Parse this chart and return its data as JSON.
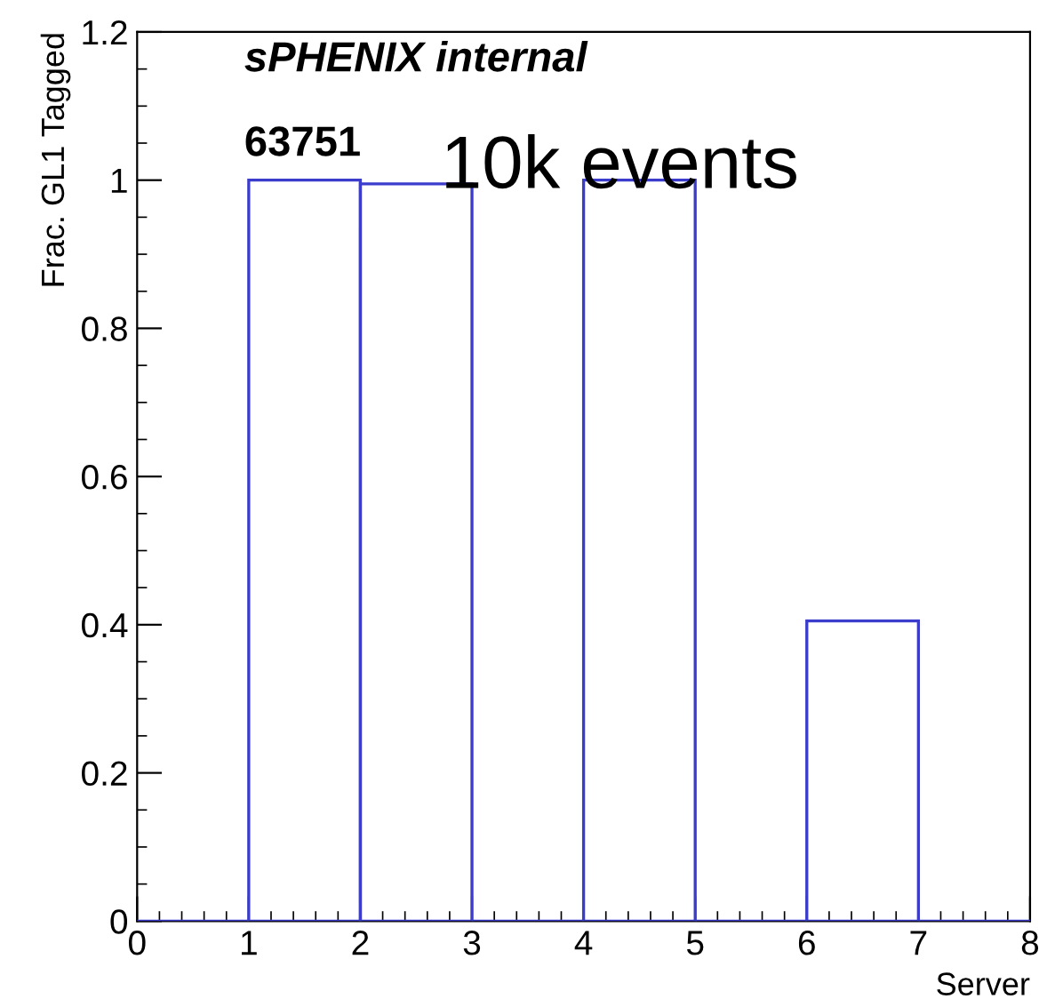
{
  "chart_data": {
    "type": "histogram",
    "xlabel": "Server",
    "ylabel": "Frac. GL1 Tagged",
    "annotations": [
      "sPHENIX internal",
      "63751",
      "10k events"
    ],
    "bins": [
      0,
      1,
      2,
      3,
      4,
      5,
      6,
      7,
      8
    ],
    "values": [
      0,
      1.0,
      0.995,
      0,
      1.0,
      0,
      0.405,
      0
    ],
    "color": "#3c3ccc",
    "xlim": [
      0,
      8
    ],
    "xticks": [
      0,
      1,
      2,
      3,
      4,
      5,
      6,
      7,
      8
    ],
    "ylim": [
      0,
      1.2
    ],
    "yticks": [
      0,
      0.2,
      0.4,
      0.6,
      0.8,
      1,
      1.2
    ],
    "grid": false,
    "legend": false
  }
}
